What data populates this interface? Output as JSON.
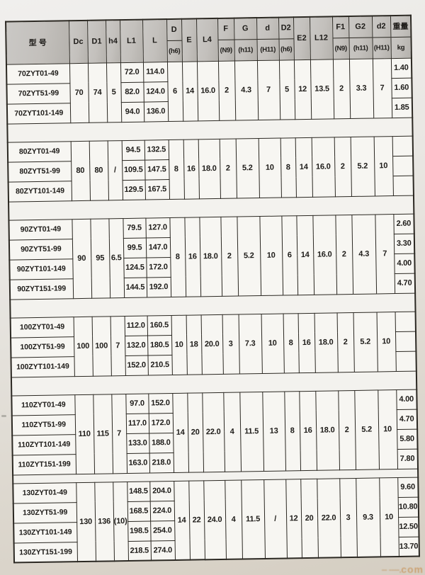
{
  "watermark": {
    "text": "com"
  },
  "colors": {
    "header_bg": "#c3c0bc",
    "border": "#2b2822",
    "cell_bg": "#f7f6f2",
    "page_top": "#f0efed",
    "page_bottom": "#d5cec2",
    "watermark_color": "#c48034"
  },
  "table": {
    "columns": [
      {
        "key": "model",
        "label": "型 号",
        "sub": ""
      },
      {
        "key": "Dc",
        "label": "Dc",
        "sub": ""
      },
      {
        "key": "D1",
        "label": "D1",
        "sub": ""
      },
      {
        "key": "h4",
        "label": "h4",
        "sub": ""
      },
      {
        "key": "L1",
        "label": "L1",
        "sub": ""
      },
      {
        "key": "L",
        "label": "L",
        "sub": ""
      },
      {
        "key": "D",
        "label": "D",
        "sub": "(h6)"
      },
      {
        "key": "E",
        "label": "E",
        "sub": ""
      },
      {
        "key": "L4",
        "label": "L4",
        "sub": ""
      },
      {
        "key": "F",
        "label": "F",
        "sub": "(N9)"
      },
      {
        "key": "G",
        "label": "G",
        "sub": "(h11)"
      },
      {
        "key": "d",
        "label": "d",
        "sub": "(H11)"
      },
      {
        "key": "D2",
        "label": "D2",
        "sub": "(h6)"
      },
      {
        "key": "E2",
        "label": "E2",
        "sub": ""
      },
      {
        "key": "L12",
        "label": "L12",
        "sub": ""
      },
      {
        "key": "F1",
        "label": "F1",
        "sub": "(N9)"
      },
      {
        "key": "G2",
        "label": "G2",
        "sub": "(h11)"
      },
      {
        "key": "d2",
        "label": "d2",
        "sub": "(H11)"
      },
      {
        "key": "weight",
        "label": "重量",
        "sub": "kg"
      }
    ],
    "blocks": [
      {
        "shared": {
          "Dc": "70",
          "D1": "74",
          "h4": "5",
          "D": "6",
          "E": "14",
          "L4": "16.0",
          "F": "2",
          "G": "4.3",
          "d": "7",
          "D2": "5",
          "E2": "12",
          "L12": "13.5",
          "F1": "2",
          "G2": "3.3",
          "d2": "7"
        },
        "rows": [
          {
            "model": "70ZYT01-49",
            "L1": "72.0",
            "L": "114.0",
            "weight": "1.40"
          },
          {
            "model": "70ZYT51-99",
            "L1": "82.0",
            "L": "124.0",
            "weight": "1.60"
          },
          {
            "model": "70ZYT101-149",
            "L1": "94.0",
            "L": "136.0",
            "weight": "1.85"
          }
        ]
      },
      {
        "shared": {
          "Dc": "80",
          "D1": "80",
          "h4": "/",
          "D": "8",
          "E": "16",
          "L4": "18.0",
          "F": "2",
          "G": "5.2",
          "d": "10",
          "D2": "8",
          "E2": "14",
          "L12": "16.0",
          "F1": "2",
          "G2": "5.2",
          "d2": "10"
        },
        "rows": [
          {
            "model": "80ZYT01-49",
            "L1": "94.5",
            "L": "132.5",
            "weight": ""
          },
          {
            "model": "80ZYT51-99",
            "L1": "109.5",
            "L": "147.5",
            "weight": ""
          },
          {
            "model": "80ZYT101-149",
            "L1": "129.5",
            "L": "167.5",
            "weight": ""
          }
        ]
      },
      {
        "shared": {
          "Dc": "90",
          "D1": "95",
          "h4": "6.5",
          "D": "8",
          "E": "16",
          "L4": "18.0",
          "F": "2",
          "G": "5.2",
          "d": "10",
          "D2": "6",
          "E2": "14",
          "L12": "16.0",
          "F1": "2",
          "G2": "4.3",
          "d2": "7"
        },
        "rows": [
          {
            "model": "90ZYT01-49",
            "L1": "79.5",
            "L": "127.0",
            "weight": "2.60"
          },
          {
            "model": "90ZYT51-99",
            "L1": "99.5",
            "L": "147.0",
            "weight": "3.30"
          },
          {
            "model": "90ZYT101-149",
            "L1": "124.5",
            "L": "172.0",
            "weight": "4.00"
          },
          {
            "model": "90ZYT151-199",
            "L1": "144.5",
            "L": "192.0",
            "weight": "4.70"
          }
        ]
      },
      {
        "shared": {
          "Dc": "100",
          "D1": "100",
          "h4": "7",
          "D": "10",
          "E": "18",
          "L4": "20.0",
          "F": "3",
          "G": "7.3",
          "d": "10",
          "D2": "8",
          "E2": "16",
          "L12": "18.0",
          "F1": "2",
          "G2": "5.2",
          "d2": "10"
        },
        "rows": [
          {
            "model": "100ZYT01-49",
            "L1": "112.0",
            "L": "160.5",
            "weight": ""
          },
          {
            "model": "100ZYT51-99",
            "L1": "132.0",
            "L": "180.5",
            "weight": ""
          },
          {
            "model": "100ZYT101-149",
            "L1": "152.0",
            "L": "210.5",
            "weight": ""
          }
        ]
      },
      {
        "shared": {
          "Dc": "110",
          "D1": "115",
          "h4": "7",
          "D": "14",
          "E": "20",
          "L4": "22.0",
          "F": "4",
          "G": "11.5",
          "d": "13",
          "D2": "8",
          "E2": "16",
          "L12": "18.0",
          "F1": "2",
          "G2": "5.2",
          "d2": "10"
        },
        "rows": [
          {
            "model": "110ZYT01-49",
            "L1": "97.0",
            "L": "152.0",
            "weight": "4.00"
          },
          {
            "model": "110ZYT51-99",
            "L1": "117.0",
            "L": "172.0",
            "weight": "4.70"
          },
          {
            "model": "110ZYT101-149",
            "L1": "133.0",
            "L": "188.0",
            "weight": "5.80"
          },
          {
            "model": "110ZYT151-199",
            "L1": "163.0",
            "L": "218.0",
            "weight": "7.80"
          }
        ]
      },
      {
        "shared": {
          "Dc": "130",
          "D1": "136",
          "h4": "(10)",
          "D": "14",
          "E": "22",
          "L4": "24.0",
          "F": "4",
          "G": "11.5",
          "d": "/",
          "D2": "12",
          "E2": "20",
          "L12": "22.0",
          "F1": "3",
          "G2": "9.3",
          "d2": "10"
        },
        "rows": [
          {
            "model": "130ZYT01-49",
            "L1": "148.5",
            "L": "204.0",
            "weight": "9.60"
          },
          {
            "model": "130ZYT51-99",
            "L1": "168.5",
            "L": "224.0",
            "weight": "10.80"
          },
          {
            "model": "130ZYT101-149",
            "L1": "198.5",
            "L": "254.0",
            "weight": "12.50"
          },
          {
            "model": "130ZYT151-199",
            "L1": "218.5",
            "L": "274.0",
            "weight": "13.70"
          }
        ]
      }
    ]
  }
}
